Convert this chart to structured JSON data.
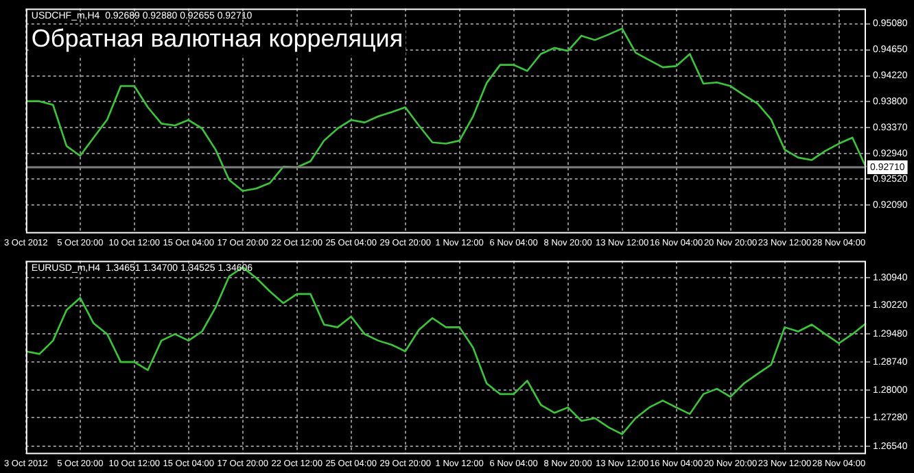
{
  "chart_data": [
    {
      "type": "line",
      "title": "Обратная валютная корреляция",
      "subtitle": "USDCHF_m,H4  0.92689 0.92880 0.92655 0.92710",
      "categories": [
        "3 Oct 2012",
        null,
        null,
        null,
        "5 Oct 20:00",
        null,
        null,
        null,
        "10 Oct 12:00",
        null,
        null,
        null,
        "15 Oct 04:00",
        null,
        null,
        null,
        "17 Oct 20:00",
        null,
        null,
        null,
        "22 Oct 12:00",
        null,
        null,
        null,
        "25 Oct 04:00",
        null,
        null,
        null,
        "29 Oct 20:00",
        null,
        null,
        null,
        "1 Nov 12:00",
        null,
        null,
        null,
        "6 Nov 04:00",
        null,
        null,
        null,
        "8 Nov 20:00",
        null,
        null,
        null,
        "13 Nov 12:00",
        null,
        null,
        null,
        "16 Nov 04:00",
        null,
        null,
        null,
        "20 Nov 20:00",
        null,
        null,
        null,
        "23 Nov 12:00",
        null,
        null,
        null,
        "28 Nov 04:00",
        null,
        null
      ],
      "series": [
        {
          "color": "#33cc33",
          "values": [
            0.938,
            0.938,
            0.9374,
            0.9306,
            0.929,
            0.932,
            0.935,
            0.9405,
            0.9405,
            0.937,
            0.9343,
            0.934,
            0.9349,
            0.9335,
            0.93,
            0.925,
            0.9232,
            0.9236,
            0.9245,
            0.9272,
            0.9271,
            0.9281,
            0.9315,
            0.9335,
            0.9349,
            0.9345,
            0.9355,
            0.9362,
            0.937,
            0.934,
            0.9312,
            0.931,
            0.9315,
            0.9355,
            0.941,
            0.944,
            0.944,
            0.943,
            0.9458,
            0.9468,
            0.9463,
            0.9488,
            0.9481,
            0.949,
            0.95,
            0.946,
            0.9448,
            0.9436,
            0.9438,
            0.9458,
            0.9409,
            0.9411,
            0.9405,
            0.939,
            0.9376,
            0.935,
            0.93,
            0.9287,
            0.9283,
            0.9298,
            0.931,
            0.932,
            0.9271
          ]
        }
      ],
      "ylim": [
        0.9162,
        0.9533
      ],
      "yticks": [
        {
          "value": 0.9508,
          "label": "0.95080"
        },
        {
          "value": 0.9465,
          "label": "0.94650"
        },
        {
          "value": 0.9422,
          "label": "0.94220"
        },
        {
          "value": 0.938,
          "label": "0.93800"
        },
        {
          "value": 0.9337,
          "label": "0.93370"
        },
        {
          "value": 0.9294,
          "label": "0.92940"
        },
        {
          "value": 0.9252,
          "label": "0.92520"
        },
        {
          "value": 0.9209,
          "label": "0.92090"
        }
      ],
      "ref_lines": [
        {
          "axis": "y",
          "value": 0.9271,
          "label": "0.92710",
          "color": "#808080"
        }
      ],
      "grid": true,
      "legend": false
    },
    {
      "type": "line",
      "subtitle": "EURUSD_m,H4  1.34651 1.34700 1.34525 1.34606",
      "categories": [
        "3 Oct 2012",
        null,
        null,
        null,
        "5 Oct 20:00",
        null,
        null,
        null,
        "10 Oct 12:00",
        null,
        null,
        null,
        "15 Oct 04:00",
        null,
        null,
        null,
        "17 Oct 20:00",
        null,
        null,
        null,
        "22 Oct 12:00",
        null,
        null,
        null,
        "25 Oct 04:00",
        null,
        null,
        null,
        "29 Oct 20:00",
        null,
        null,
        null,
        "1 Nov 12:00",
        null,
        null,
        null,
        "6 Nov 04:00",
        null,
        null,
        null,
        "8 Nov 20:00",
        null,
        null,
        null,
        "13 Nov 12:00",
        null,
        null,
        null,
        "16 Nov 04:00",
        null,
        null,
        null,
        "20 Nov 20:00",
        null,
        null,
        null,
        "23 Nov 12:00",
        null,
        null,
        null,
        "28 Nov 04:00",
        null,
        null
      ],
      "series": [
        {
          "color": "#33cc33",
          "values": [
            1.2902,
            1.2895,
            1.293,
            1.301,
            1.3042,
            1.2975,
            1.2947,
            1.2874,
            1.2874,
            1.2853,
            1.293,
            1.2947,
            1.293,
            1.2954,
            1.3017,
            1.3098,
            1.3122,
            1.3094,
            1.3059,
            1.3028,
            1.3052,
            1.3052,
            1.2972,
            1.2965,
            1.2993,
            1.2947,
            1.293,
            1.2919,
            1.2902,
            1.2958,
            1.2989,
            1.2965,
            1.2965,
            1.2912,
            1.2818,
            1.279,
            1.279,
            1.2825,
            1.2762,
            1.2741,
            1.2755,
            1.272,
            1.2727,
            1.2703,
            1.2685,
            1.2727,
            1.2755,
            1.2773,
            1.2755,
            1.2738,
            1.279,
            1.2804,
            1.2783,
            1.2818,
            1.2843,
            1.2867,
            1.2965,
            1.2954,
            1.2972,
            1.2947,
            1.2923,
            1.2947,
            1.2975
          ]
        }
      ],
      "ylim": [
        1.2633,
        1.3139
      ],
      "yticks": [
        {
          "value": 1.3094,
          "label": "1.30940"
        },
        {
          "value": 1.3022,
          "label": "1.30220"
        },
        {
          "value": 1.2948,
          "label": "1.29480"
        },
        {
          "value": 1.2874,
          "label": "1.28740"
        },
        {
          "value": 1.28,
          "label": "1.28000"
        },
        {
          "value": 1.2728,
          "label": "1.27280"
        },
        {
          "value": 1.2654,
          "label": "1.26540"
        }
      ],
      "grid": true,
      "legend": false
    }
  ]
}
